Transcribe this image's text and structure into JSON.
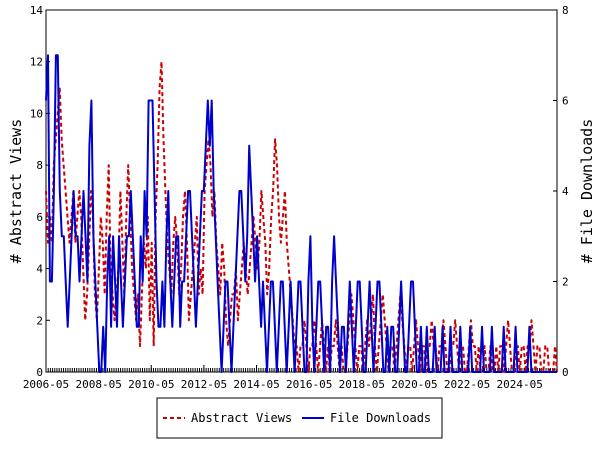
{
  "chart_data": {
    "type": "line",
    "x_start": "2006-05",
    "x_end": "2025-10",
    "x_tick_labels": [
      "2006-05",
      "2008-05",
      "2010-05",
      "2012-05",
      "2014-05",
      "2016-05",
      "2018-05",
      "2020-05",
      "2022-05",
      "2024-05"
    ],
    "y_left": {
      "label": "# Abstract Views",
      "ylim": [
        0,
        14
      ],
      "ticks": [
        "0",
        "2",
        "4",
        "6",
        "8",
        "10",
        "12",
        "14"
      ]
    },
    "y_right": {
      "label": "# File Downloads",
      "ylim": [
        0,
        8
      ],
      "ticks": [
        "0",
        "2",
        "4",
        "6",
        "8"
      ]
    },
    "legend_position": "bottom-center",
    "grid": false,
    "series": [
      {
        "name": "Abstract Views",
        "axis": "left",
        "color": "#cc0000",
        "style": "dashed",
        "values": [
          7,
          5,
          6,
          5,
          8,
          9,
          10,
          11,
          9,
          8,
          7,
          6,
          5,
          6,
          7,
          5,
          6,
          7,
          6,
          4,
          2,
          3,
          5,
          7,
          6,
          3,
          2,
          4,
          6,
          5,
          3,
          6,
          8,
          4,
          3,
          2,
          3,
          4,
          7,
          5,
          3,
          6,
          8,
          6,
          4,
          3,
          2,
          3,
          1,
          3,
          5,
          4,
          6,
          2,
          5,
          1,
          6,
          8,
          11,
          12,
          9,
          7,
          5,
          4,
          3,
          5,
          6,
          5,
          3,
          4,
          6,
          7,
          5,
          2,
          3,
          4,
          5,
          6,
          3,
          4,
          3,
          7,
          8,
          9,
          8,
          6,
          7,
          5,
          4,
          3,
          5,
          4,
          2,
          1,
          2,
          3,
          3,
          4,
          2,
          3,
          4,
          5,
          4,
          3,
          4,
          5,
          6,
          5,
          4,
          5,
          7,
          6,
          5,
          3,
          4,
          6,
          7,
          9,
          8,
          6,
          5,
          6,
          7,
          5,
          4,
          3,
          2,
          1,
          1,
          0,
          1,
          1,
          2,
          1,
          0,
          1,
          1,
          2,
          1,
          0,
          1,
          2,
          1,
          0,
          1,
          0,
          1,
          1,
          2,
          1,
          0,
          1,
          0,
          0,
          1,
          2,
          3,
          2,
          1,
          0,
          1,
          1,
          0,
          1,
          2,
          1,
          2,
          3,
          1,
          0,
          1,
          2,
          3,
          2,
          1,
          0,
          1,
          1,
          0,
          1,
          2,
          3,
          2,
          1,
          0,
          1,
          1,
          0,
          1,
          2,
          1,
          0,
          1,
          1,
          0,
          1,
          1,
          2,
          1,
          1,
          0,
          1,
          1,
          2,
          1,
          0,
          0,
          1,
          1,
          2,
          1,
          0,
          1,
          1,
          0,
          0,
          1,
          2,
          1,
          1,
          0,
          1,
          0,
          0,
          1,
          0,
          0,
          1,
          0,
          0,
          1,
          0,
          1,
          1,
          0,
          1,
          2,
          1,
          0,
          0,
          1,
          1,
          0,
          1,
          1,
          0,
          1,
          1,
          2,
          1,
          0,
          1,
          1,
          0,
          0,
          1,
          1,
          0,
          0,
          0,
          1,
          0
        ]
      },
      {
        "name": "File Downloads",
        "axis": "right",
        "color": "#0000cc",
        "style": "solid",
        "values": [
          6,
          7,
          2,
          2,
          4,
          7,
          7,
          4,
          3,
          3,
          2,
          1,
          2,
          3,
          4,
          3,
          3,
          2,
          3,
          4,
          3,
          2,
          5,
          6,
          3,
          2,
          1,
          0,
          0,
          1,
          0,
          2,
          3,
          1,
          3,
          2,
          1,
          3,
          2,
          1,
          2,
          3,
          3,
          4,
          3,
          2,
          1,
          1,
          3,
          2,
          4,
          3,
          6,
          6,
          6,
          4,
          2,
          1,
          1,
          2,
          1,
          3,
          4,
          2,
          1,
          2,
          3,
          3,
          1,
          2,
          2,
          3,
          4,
          4,
          3,
          2,
          1,
          2,
          3,
          4,
          4,
          5,
          6,
          5,
          6,
          4,
          3,
          2,
          1,
          0,
          1,
          2,
          2,
          1,
          0,
          1,
          2,
          3,
          4,
          4,
          3,
          2,
          3,
          5,
          4,
          3,
          2,
          3,
          2,
          1,
          2,
          1,
          0,
          1,
          2,
          2,
          1,
          0,
          1,
          2,
          2,
          1,
          0,
          1,
          2,
          1,
          0,
          1,
          2,
          2,
          1,
          0,
          0,
          2,
          3,
          1,
          0,
          1,
          2,
          2,
          1,
          0,
          1,
          1,
          0,
          2,
          3,
          2,
          1,
          0,
          1,
          1,
          0,
          1,
          2,
          1,
          0,
          1,
          2,
          2,
          1,
          0,
          0,
          1,
          2,
          1,
          0,
          1,
          2,
          2,
          1,
          0,
          0,
          1,
          0,
          1,
          1,
          0,
          0,
          1,
          2,
          1,
          0,
          0,
          1,
          2,
          2,
          1,
          0,
          0,
          1,
          0,
          0,
          1,
          0,
          0,
          0,
          1,
          0,
          0,
          0,
          1,
          0,
          0,
          0,
          1,
          0,
          0,
          0,
          0,
          1,
          0,
          0,
          0,
          0,
          1,
          0,
          0,
          0,
          0,
          0,
          1,
          0,
          0,
          0,
          0,
          1,
          0,
          0,
          0,
          0,
          0,
          1,
          0,
          0,
          0,
          0,
          0,
          1,
          0,
          0,
          0,
          0,
          0,
          0,
          1,
          0,
          0,
          0,
          0,
          0,
          0,
          0,
          0,
          0,
          0,
          0,
          0,
          0,
          0
        ]
      }
    ]
  }
}
